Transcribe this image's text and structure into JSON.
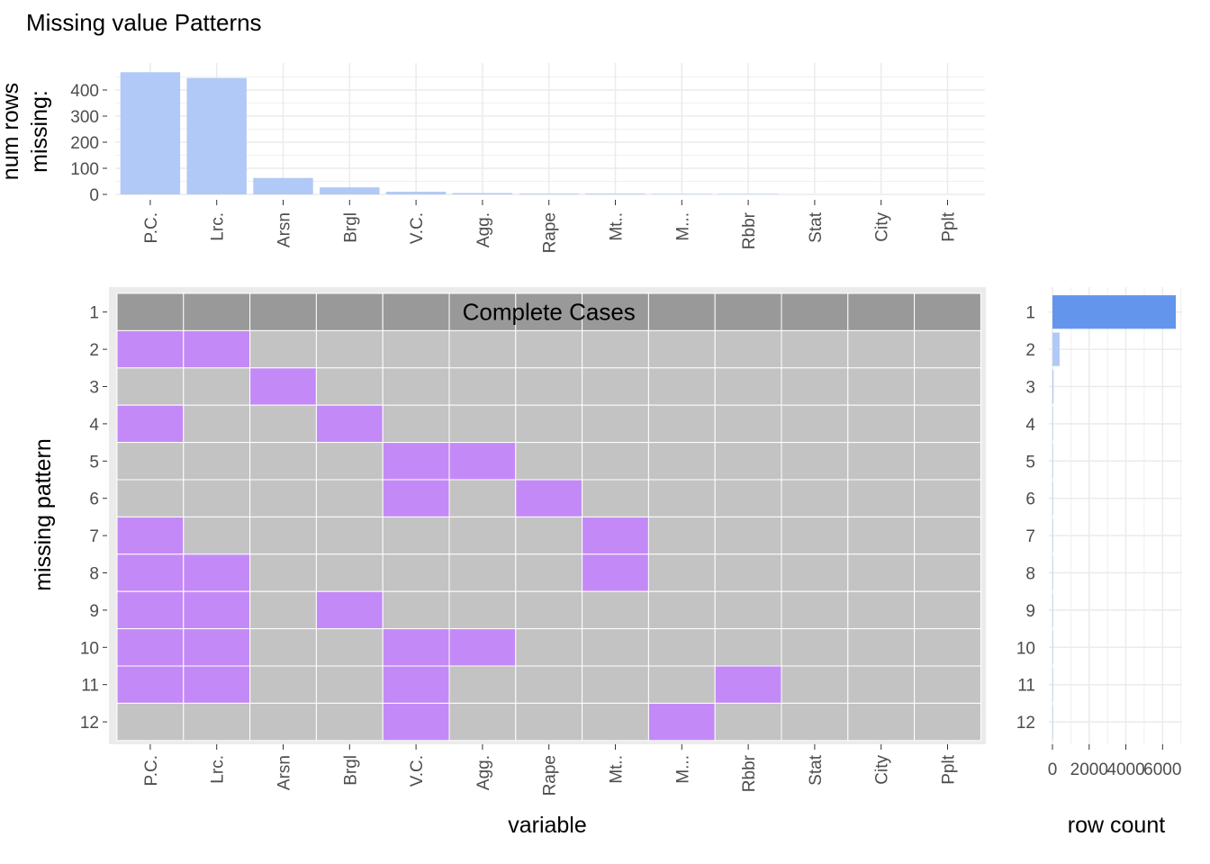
{
  "title": "Missing value Patterns",
  "colors": {
    "bar_top": "#b1c9f6",
    "bar_right_complete": "#6495ed",
    "bar_right": "#b1c9f6",
    "missing": "#c38af7",
    "present": "#c3c3c3",
    "complete": "#999999",
    "panel_bg": "#ebebeb",
    "grid": "#ebebeb"
  },
  "chart_data": [
    {
      "name": "top",
      "type": "bar",
      "ylabel": "num rows\nmissing:",
      "categories": [
        "P.C.",
        "Lrc.",
        "Arsn",
        "Brgl",
        "V.C.",
        "Agg.",
        "Rape",
        "Mt..",
        "M...",
        "Rbbr",
        "Stat",
        "City",
        "Pplt"
      ],
      "values": [
        468,
        446,
        63,
        27,
        10,
        5,
        3,
        3,
        2,
        2,
        0,
        0,
        0
      ],
      "yticks": [
        0,
        100,
        200,
        300,
        400
      ],
      "ylim": [
        0,
        470
      ]
    },
    {
      "name": "heatmap",
      "type": "heatmap",
      "xlabel": "variable",
      "ylabel": "missing pattern",
      "columns": [
        "P.C.",
        "Lrc.",
        "Arsn",
        "Brgl",
        "V.C.",
        "Agg.",
        "Rape",
        "Mt..",
        "M...",
        "Rbbr",
        "Stat",
        "City",
        "Pplt"
      ],
      "rows": [
        "1",
        "2",
        "3",
        "4",
        "5",
        "6",
        "7",
        "8",
        "9",
        "10",
        "11",
        "12"
      ],
      "complete_label": "Complete Cases",
      "missing_matrix": [
        [
          0,
          0,
          0,
          0,
          0,
          0,
          0,
          0,
          0,
          0,
          0,
          0,
          0
        ],
        [
          1,
          1,
          0,
          0,
          0,
          0,
          0,
          0,
          0,
          0,
          0,
          0,
          0
        ],
        [
          0,
          0,
          1,
          0,
          0,
          0,
          0,
          0,
          0,
          0,
          0,
          0,
          0
        ],
        [
          1,
          0,
          0,
          1,
          0,
          0,
          0,
          0,
          0,
          0,
          0,
          0,
          0
        ],
        [
          0,
          0,
          0,
          0,
          1,
          1,
          0,
          0,
          0,
          0,
          0,
          0,
          0
        ],
        [
          0,
          0,
          0,
          0,
          1,
          0,
          1,
          0,
          0,
          0,
          0,
          0,
          0
        ],
        [
          1,
          0,
          0,
          0,
          0,
          0,
          0,
          1,
          0,
          0,
          0,
          0,
          0
        ],
        [
          1,
          1,
          0,
          0,
          0,
          0,
          0,
          1,
          0,
          0,
          0,
          0,
          0
        ],
        [
          1,
          1,
          0,
          1,
          0,
          0,
          0,
          0,
          0,
          0,
          0,
          0,
          0
        ],
        [
          1,
          1,
          0,
          0,
          1,
          1,
          0,
          0,
          0,
          0,
          0,
          0,
          0
        ],
        [
          1,
          1,
          0,
          0,
          1,
          0,
          0,
          0,
          0,
          1,
          0,
          0,
          0
        ],
        [
          0,
          0,
          0,
          0,
          1,
          0,
          0,
          0,
          1,
          0,
          0,
          0,
          0
        ]
      ]
    },
    {
      "name": "right",
      "type": "bar",
      "xlabel": "row count",
      "categories": [
        "1",
        "2",
        "3",
        "4",
        "5",
        "6",
        "7",
        "8",
        "9",
        "10",
        "11",
        "12"
      ],
      "values": [
        6720,
        390,
        60,
        25,
        10,
        5,
        4,
        3,
        3,
        2,
        2,
        2
      ],
      "xticks": [
        0,
        2000,
        4000,
        6000
      ],
      "xlim": [
        0,
        6720
      ]
    }
  ]
}
